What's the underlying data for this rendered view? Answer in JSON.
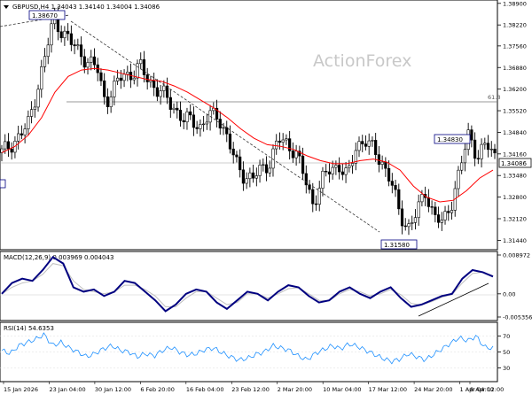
{
  "header": {
    "symbol_line": "GBPUSD,H4  1.34043 1.34140 1.34004 1.34086",
    "watermark": "ActionForex"
  },
  "colors": {
    "candle": "#000000",
    "sma": "#ff0000",
    "macd_line": "#000080",
    "macd_signal": "#c0c0c0",
    "rsi_line": "#1e90ff",
    "trendline": "#000000",
    "label_border": "#000080",
    "fib_line": "#808080"
  },
  "price_panel": {
    "y_ticks": [
      "1.38900",
      "1.38220",
      "1.37560",
      "1.36880",
      "1.36200",
      "1.35520",
      "1.34840",
      "1.34160",
      "1.33480",
      "1.32800",
      "1.32120",
      "1.31440"
    ],
    "current_price_label": "1.34086",
    "fib_label": "61.8",
    "annotations": {
      "high": "1.38670",
      "low": "1.31580",
      "recent_high": "1.34830"
    }
  },
  "macd_panel": {
    "title": "MACD(12,26,9) 0.003969 0.004043",
    "y_ticks": [
      "0.008972",
      "0.00",
      "-0.005356"
    ]
  },
  "rsi_panel": {
    "title": "RSI(14) 54.6353",
    "y_ticks": [
      "70",
      "50",
      "30"
    ]
  },
  "x_axis": {
    "labels": [
      "15 Jan 2026",
      "23 Jan 04:00",
      "30 Jan 12:00",
      "6 Feb 20:00",
      "16 Feb 04:00",
      "23 Feb 12:00",
      "2 Mar 20:00",
      "10 Mar 04:00",
      "17 Mar 12:00",
      "24 Mar 20:00",
      "1 Apr 04:00",
      "8 Apr 12:00"
    ]
  },
  "chart_data": {
    "type": "candlestick",
    "symbol": "GBPUSD",
    "timeframe": "H4",
    "ohlc_last": {
      "open": 1.34043,
      "high": 1.3414,
      "low": 1.34004,
      "close": 1.34086
    },
    "price_axis_range": [
      1.312,
      1.3895
    ],
    "swing_points": [
      {
        "label": "1.38670",
        "price": 1.3867,
        "near": "23 Jan 04:00"
      },
      {
        "label": "1.31580",
        "price": 1.3158,
        "near": "24 Mar 20:00"
      },
      {
        "label": "1.34830",
        "price": 1.3483,
        "near": "8 Apr 12:00"
      }
    ],
    "fibonacci": {
      "level": "61.8",
      "price": 1.359
    },
    "trendline": {
      "from": 1.3867,
      "to": 1.3158
    },
    "approx_close_path": [
      1.342,
      1.3445,
      1.347,
      1.3505,
      1.361,
      1.372,
      1.3845,
      1.38,
      1.3765,
      1.374,
      1.37,
      1.369,
      1.358,
      1.362,
      1.367,
      1.3665,
      1.369,
      1.365,
      1.3615,
      1.3595,
      1.356,
      1.352,
      1.3525,
      1.35,
      1.3535,
      1.354,
      1.347,
      1.339,
      1.335,
      1.3335,
      1.337,
      1.339,
      1.346,
      1.345,
      1.342,
      1.334,
      1.326,
      1.333,
      1.337,
      1.338,
      1.334,
      1.3445,
      1.346,
      1.3425,
      1.339,
      1.333,
      1.3225,
      1.3185,
      1.323,
      1.33,
      1.322,
      1.3195,
      1.3265,
      1.337,
      1.348,
      1.341,
      1.3445,
      1.3409
    ],
    "sma_path": [
      1.342,
      1.344,
      1.3475,
      1.353,
      1.361,
      1.366,
      1.368,
      1.3685,
      1.368,
      1.367,
      1.366,
      1.365,
      1.3645,
      1.363,
      1.361,
      1.3585,
      1.356,
      1.353,
      1.3495,
      1.3465,
      1.3445,
      1.344,
      1.343,
      1.341,
      1.3395,
      1.3385,
      1.3385,
      1.3395,
      1.34,
      1.339,
      1.3365,
      1.3315,
      1.328,
      1.3265,
      1.327,
      1.33,
      1.334,
      1.3365
    ],
    "macd": {
      "range": [
        -0.005356,
        0.008972
      ],
      "macd_path": [
        0.0,
        0.0025,
        0.0035,
        0.003,
        0.0055,
        0.0085,
        0.007,
        0.0015,
        0.0005,
        0.001,
        -0.0005,
        0.0005,
        0.003,
        0.0025,
        0.0005,
        -0.0015,
        -0.004,
        -0.0025,
        0.0,
        0.001,
        0.0005,
        -0.002,
        -0.0035,
        -0.0015,
        0.0005,
        0.0,
        -0.0015,
        0.0005,
        0.002,
        0.0015,
        -0.0005,
        -0.002,
        -0.0015,
        0.0005,
        0.0015,
        0.0,
        -0.001,
        0.0005,
        0.0015,
        -0.001,
        -0.003,
        -0.0025,
        -0.0015,
        -0.0005,
        0.0,
        0.0035,
        0.0055,
        0.005,
        0.004
      ],
      "signal_path": [
        0.0,
        0.0015,
        0.0025,
        0.003,
        0.0045,
        0.007,
        0.0065,
        0.003,
        0.001,
        0.0005,
        0.0,
        0.0005,
        0.002,
        0.002,
        0.001,
        -0.0005,
        -0.003,
        -0.003,
        -0.001,
        0.0005,
        0.0005,
        -0.001,
        -0.0025,
        -0.002,
        0.0,
        0.0,
        -0.001,
        0.0,
        0.0012,
        0.0014,
        0.0,
        -0.0015,
        -0.0016,
        0.0,
        0.001,
        0.0005,
        -0.0005,
        0.0,
        0.001,
        -0.0002,
        -0.0022,
        -0.0026,
        -0.0018,
        -0.0008,
        -0.0002,
        0.0025,
        0.0047,
        0.005,
        0.0042
      ],
      "trendline": {
        "from": -0.004,
        "to": 0.002
      }
    },
    "rsi": {
      "levels": [
        70,
        50,
        30
      ],
      "range": [
        15,
        85
      ],
      "path": [
        52,
        48,
        58,
        62,
        66,
        72,
        58,
        62,
        55,
        50,
        44,
        48,
        54,
        58,
        52,
        50,
        44,
        48,
        45,
        52,
        56,
        50,
        46,
        48,
        53,
        55,
        49,
        44,
        40,
        42,
        47,
        50,
        58,
        55,
        52,
        45,
        40,
        48,
        53,
        58,
        54,
        60,
        57,
        52,
        47,
        42,
        38,
        41,
        48,
        44,
        40,
        47,
        54,
        61,
        68,
        64,
        70,
        56,
        54.6
      ]
    }
  }
}
